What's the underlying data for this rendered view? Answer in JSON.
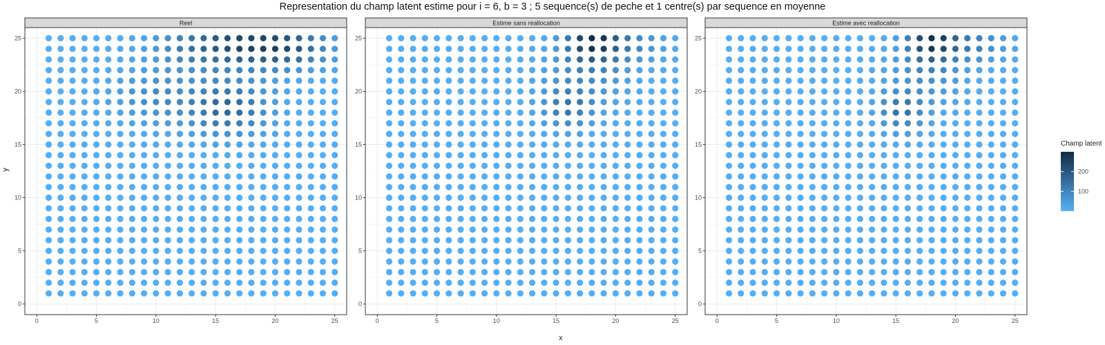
{
  "title": "Representation du champ latent estime pour i = 6, b = 3 ; 5 sequence(s) de peche et 1 centre(s) par sequence en moyenne",
  "chart_data": {
    "type": "scatter",
    "title": "Representation du champ latent estime pour i = 6, b = 3 ; 5 sequence(s) de peche et 1 centre(s) par sequence en moyenne",
    "xlabel": "x",
    "ylabel": "y",
    "xlim": [
      0,
      25
    ],
    "ylim": [
      0,
      25
    ],
    "x_ticks": [
      0,
      5,
      10,
      15,
      20,
      25
    ],
    "y_ticks": [
      0,
      5,
      10,
      15,
      20,
      25
    ],
    "grid": true,
    "legend": {
      "title": "Champ latent",
      "position": "right",
      "breaks": [
        100,
        200
      ],
      "break_labels": [
        "100",
        "200"
      ],
      "range": [
        0,
        300
      ],
      "low_color": "#56B1F7",
      "high_color": "#132B43"
    },
    "grid_points": {
      "x_from": 1,
      "x_to": 25,
      "y_from": 1,
      "y_to": 25,
      "step": 1
    },
    "panels": [
      {
        "label": "Reel",
        "hotspots": [
          {
            "cx": 17.5,
            "cy": 24.5,
            "amp": 220,
            "sx": 3.3,
            "sy": 1.6
          },
          {
            "cx": 16,
            "cy": 18.5,
            "amp": 160,
            "sx": 2.3,
            "sy": 1.8
          },
          {
            "cx": 21.5,
            "cy": 24,
            "amp": 110,
            "sx": 2.2,
            "sy": 1.2
          },
          {
            "cx": 10,
            "cy": 19.5,
            "amp": 75,
            "sx": 2.4,
            "sy": 1.7
          },
          {
            "cx": 12.5,
            "cy": 24,
            "amp": 55,
            "sx": 2.5,
            "sy": 1.3
          }
        ]
      },
      {
        "label": "Estime sans reallocation",
        "hotspots": [
          {
            "cx": 18,
            "cy": 24.8,
            "amp": 260,
            "sx": 1.5,
            "sy": 1.5
          },
          {
            "cx": 16,
            "cy": 18.5,
            "amp": 115,
            "sx": 1.5,
            "sy": 1.4
          },
          {
            "cx": 21,
            "cy": 24.5,
            "amp": 85,
            "sx": 2.0,
            "sy": 1.2
          },
          {
            "cx": 17.5,
            "cy": 21.5,
            "amp": 60,
            "sx": 2.5,
            "sy": 2.0
          }
        ]
      },
      {
        "label": "Estime avec reallocation",
        "hotspots": [
          {
            "cx": 18,
            "cy": 24.8,
            "amp": 260,
            "sx": 1.4,
            "sy": 1.5
          },
          {
            "cx": 15.5,
            "cy": 18.2,
            "amp": 130,
            "sx": 1.3,
            "sy": 1.3
          },
          {
            "cx": 21.5,
            "cy": 24.5,
            "amp": 100,
            "sx": 1.8,
            "sy": 1.2
          },
          {
            "cx": 17.5,
            "cy": 21.5,
            "amp": 55,
            "sx": 2.2,
            "sy": 2.0
          }
        ]
      }
    ]
  }
}
